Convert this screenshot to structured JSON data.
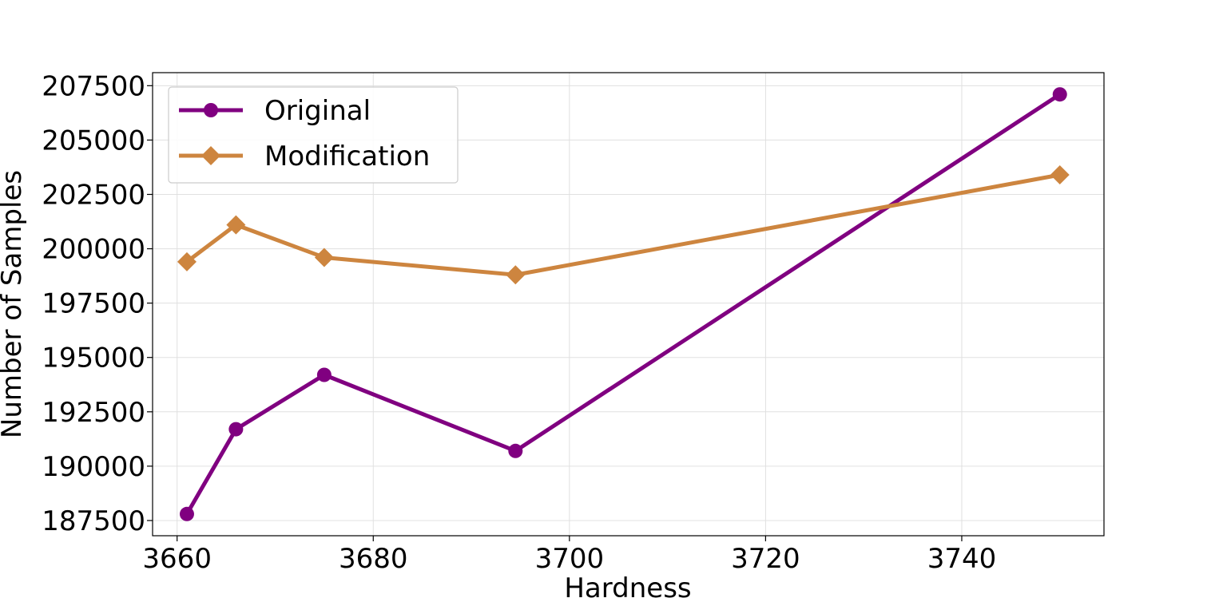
{
  "chart_data": {
    "type": "line",
    "title": "",
    "xlabel": "Hardness",
    "ylabel": "Number of Samples",
    "xlim": [
      3657.5,
      3754.5
    ],
    "ylim": [
      186800,
      208100
    ],
    "xticks": [
      3660,
      3680,
      3700,
      3720,
      3740
    ],
    "yticks": [
      187500,
      190000,
      192500,
      195000,
      197500,
      200000,
      202500,
      205000,
      207500
    ],
    "grid": true,
    "legend_position": "top-left",
    "series": [
      {
        "name": "Original",
        "color": "#800080",
        "marker": "circle",
        "x": [
          3661,
          3666,
          3675,
          3694.5,
          3750
        ],
        "y": [
          187800,
          191700,
          194200,
          190700,
          207100
        ]
      },
      {
        "name": "Modification",
        "color": "#CD853F",
        "marker": "diamond",
        "x": [
          3661,
          3666,
          3675,
          3694.5,
          3750
        ],
        "y": [
          199400,
          201100,
          199600,
          198800,
          203400
        ]
      }
    ]
  }
}
